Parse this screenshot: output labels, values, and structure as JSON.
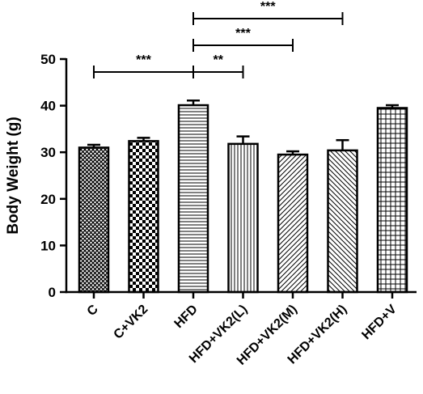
{
  "chart_data": {
    "type": "bar",
    "title": "",
    "xlabel": "",
    "ylabel": "Body Weight (g)",
    "ylim": [
      0,
      50
    ],
    "yticks": [
      0,
      10,
      20,
      30,
      40,
      50
    ],
    "grid": false,
    "legend": "none",
    "categories": [
      "C",
      "C+VK2",
      "HFD",
      "HFD+VK2(L)",
      "HFD+VK2(M)",
      "HFD+VK2(H)",
      "HFD+V"
    ],
    "values": [
      31.0,
      32.4,
      40.1,
      31.8,
      29.5,
      30.4,
      39.5
    ],
    "errors": [
      0.6,
      0.7,
      1.0,
      1.6,
      0.7,
      2.2,
      0.6
    ],
    "patterns": [
      "crosshatch-diagonal",
      "checkerboard",
      "horizontal-lines",
      "vertical-lines",
      "diagonal-lines",
      "diagonal-lines-reverse",
      "grid"
    ],
    "significance": [
      {
        "from": "C",
        "to": "HFD",
        "label": "***"
      },
      {
        "from": "HFD",
        "to": "HFD+VK2(L)",
        "label": "**"
      },
      {
        "from": "HFD",
        "to": "HFD+VK2(M)",
        "label": "***"
      },
      {
        "from": "HFD",
        "to": "HFD+VK2(H)",
        "label": "***"
      }
    ]
  }
}
